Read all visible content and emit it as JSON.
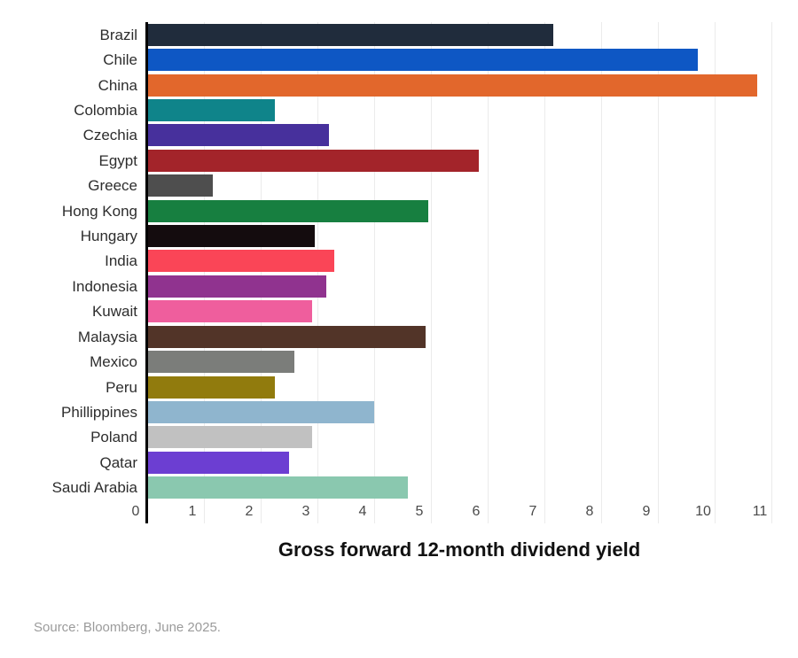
{
  "chart_data": {
    "type": "bar",
    "orientation": "horizontal",
    "title": "",
    "xlabel": "Gross forward 12-month dividend yield",
    "ylabel": "",
    "xlim": [
      0,
      11.5
    ],
    "x_ticks": [
      0,
      1,
      2,
      3,
      4,
      5,
      6,
      7,
      8,
      9,
      10,
      11
    ],
    "grid": "vertical-light",
    "legend": "none",
    "categories": [
      "Brazil",
      "Chile",
      "China",
      "Colombia",
      "Czechia",
      "Egypt",
      "Greece",
      "Hong Kong",
      "Hungary",
      "India",
      "Indonesia",
      "Kuwait",
      "Malaysia",
      "Mexico",
      "Peru",
      "Phillippines",
      "Poland",
      "Qatar",
      "Saudi Arabia"
    ],
    "values": [
      7.15,
      9.7,
      10.75,
      2.25,
      3.2,
      5.85,
      1.15,
      4.95,
      2.95,
      3.3,
      3.15,
      2.9,
      4.9,
      2.6,
      2.25,
      4.0,
      2.9,
      2.5,
      4.6
    ],
    "bar_colors": [
      "#202C3C",
      "#0E57C4",
      "#E2672C",
      "#0F848A",
      "#47309C",
      "#A3242A",
      "#4E4E4E",
      "#177F40",
      "#140C0E",
      "#FA4557",
      "#90338F",
      "#EF5E9D",
      "#523428",
      "#7B7D7A",
      "#917B0D",
      "#8FB5CE",
      "#C1C1C1",
      "#6C3ED2",
      "#8AC8AF"
    ]
  },
  "colors": {
    "axis_spine": "#000000",
    "gridline": "#ebebeb",
    "category_label": "#2d2d2d",
    "tick_label": "#4a4a4a",
    "axis_title": "#111111",
    "source_text": "#9b9b9b",
    "background": "#ffffff"
  },
  "source": "Source: Bloomberg, June 2025."
}
